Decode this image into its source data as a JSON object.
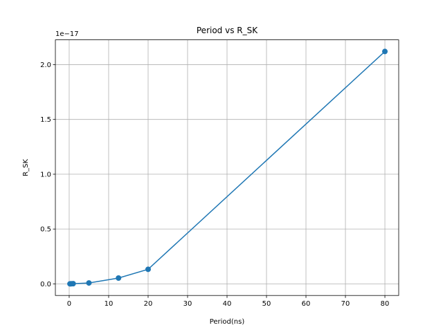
{
  "chart_data": {
    "type": "line",
    "title": "Period vs R_SK",
    "xlabel": "Period(ns)",
    "ylabel": "R_SK",
    "y_offset_label": "1e−17",
    "xlim": [
      -3.5,
      83.5
    ],
    "ylim": [
      -0.106,
      2.226
    ],
    "grid": true,
    "x_ticks": [
      0,
      10,
      20,
      30,
      40,
      50,
      60,
      70,
      80
    ],
    "x_tick_labels": [
      "0",
      "10",
      "20",
      "30",
      "40",
      "50",
      "60",
      "70",
      "80"
    ],
    "y_ticks": [
      0.0,
      0.5,
      1.0,
      1.5,
      2.0
    ],
    "y_tick_labels": [
      "0.0",
      "0.5",
      "1.0",
      "1.5",
      "2.0"
    ],
    "series": [
      {
        "x": [
          0.2,
          0.5,
          1,
          5,
          12.5,
          20,
          80
        ],
        "y": [
          0.0003,
          0.0008,
          0.0017,
          0.0083,
          0.053,
          0.133,
          2.12
        ],
        "color": "#1f77b4"
      }
    ]
  }
}
